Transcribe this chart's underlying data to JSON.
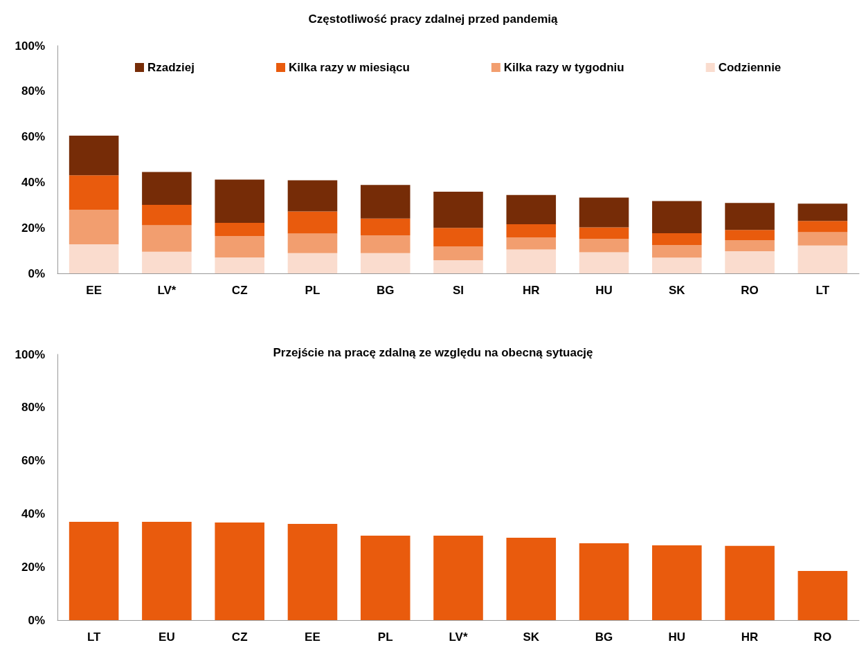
{
  "chart_data": [
    {
      "type": "bar",
      "title": "Częstotliwość pracy zdalnej przed pandemią",
      "stacked": true,
      "legend": "top",
      "categories": [
        "EE",
        "LV*",
        "CZ",
        "PL",
        "BG",
        "SI",
        "HR",
        "HU",
        "SK",
        "RO",
        "LT"
      ],
      "ylim": [
        0,
        100
      ],
      "yticks": [
        {
          "value": 0,
          "label": "0%"
        },
        {
          "value": 20,
          "label": "20%"
        },
        {
          "value": 40,
          "label": "40%"
        },
        {
          "value": 60,
          "label": "60%"
        },
        {
          "value": 80,
          "label": "80%"
        },
        {
          "value": 100,
          "label": "100%"
        }
      ],
      "series": [
        {
          "name": "Codziennie",
          "color": "#fadcce",
          "values": [
            12.8,
            9.5,
            7.0,
            8.9,
            8.9,
            5.8,
            10.5,
            9.3,
            6.9,
            9.7,
            12.2
          ]
        },
        {
          "name": "Kilka razy w tygodniu",
          "color": "#f29e6f",
          "values": [
            15.1,
            11.6,
            9.4,
            8.6,
            7.8,
            6.0,
            5.2,
            5.9,
            5.6,
            4.9,
            5.9
          ]
        },
        {
          "name": "Kilka razy w miesiącu",
          "color": "#e95b0d",
          "values": [
            15.2,
            9.0,
            5.8,
            9.7,
            7.4,
            8.2,
            5.9,
            5.0,
            5.1,
            4.5,
            4.9
          ]
        },
        {
          "name": "Rzadziej",
          "color": "#762c07",
          "values": [
            17.4,
            14.4,
            19.0,
            13.7,
            14.7,
            15.9,
            12.8,
            13.1,
            14.2,
            11.8,
            7.6
          ]
        }
      ]
    },
    {
      "type": "bar",
      "title": "Przejście na pracę zdalną ze względu na obecną sytuację",
      "categories": [
        "LT",
        "EU",
        "CZ",
        "EE",
        "PL",
        "LV*",
        "SK",
        "BG",
        "HU",
        "HR",
        "RO"
      ],
      "ylim": [
        0,
        100
      ],
      "yticks": [
        {
          "value": 0,
          "label": "0%"
        },
        {
          "value": 20,
          "label": "20%"
        },
        {
          "value": 40,
          "label": "40%"
        },
        {
          "value": 60,
          "label": "60%"
        },
        {
          "value": 80,
          "label": "80%"
        },
        {
          "value": 100,
          "label": "100%"
        }
      ],
      "series": [
        {
          "color": "#e95b0d",
          "values": [
            37.0,
            37.0,
            36.7,
            36.2,
            31.8,
            31.8,
            31.0,
            28.9,
            28.1,
            27.9,
            18.5
          ]
        }
      ]
    }
  ]
}
